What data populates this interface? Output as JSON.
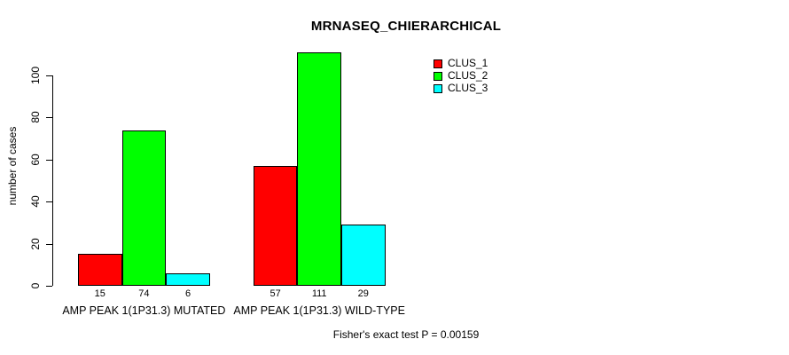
{
  "chart_data": {
    "type": "bar",
    "title": "MRNASEQ_CHIERARCHICAL",
    "ylabel": "number of cases",
    "xlabel": "",
    "annotation": "Fisher's exact test P = 0.00159",
    "categories": [
      "AMP PEAK 1(1P31.3) MUTATED",
      "AMP PEAK 1(1P31.3) WILD-TYPE"
    ],
    "series": [
      {
        "name": "CLUS_1",
        "color": "#ff0000",
        "values": [
          15,
          57
        ]
      },
      {
        "name": "CLUS_2",
        "color": "#00ff00",
        "values": [
          74,
          111
        ]
      },
      {
        "name": "CLUS_3",
        "color": "#00ffff",
        "values": [
          6,
          29
        ]
      }
    ],
    "yticks": [
      0,
      20,
      40,
      60,
      80,
      100
    ],
    "ylim": [
      0,
      111
    ],
    "grid": false,
    "bar_border_color": "#000000",
    "value_labels_shown": true,
    "legend": {
      "position": "top-right",
      "entries": [
        "CLUS_1",
        "CLUS_2",
        "CLUS_3"
      ]
    }
  }
}
